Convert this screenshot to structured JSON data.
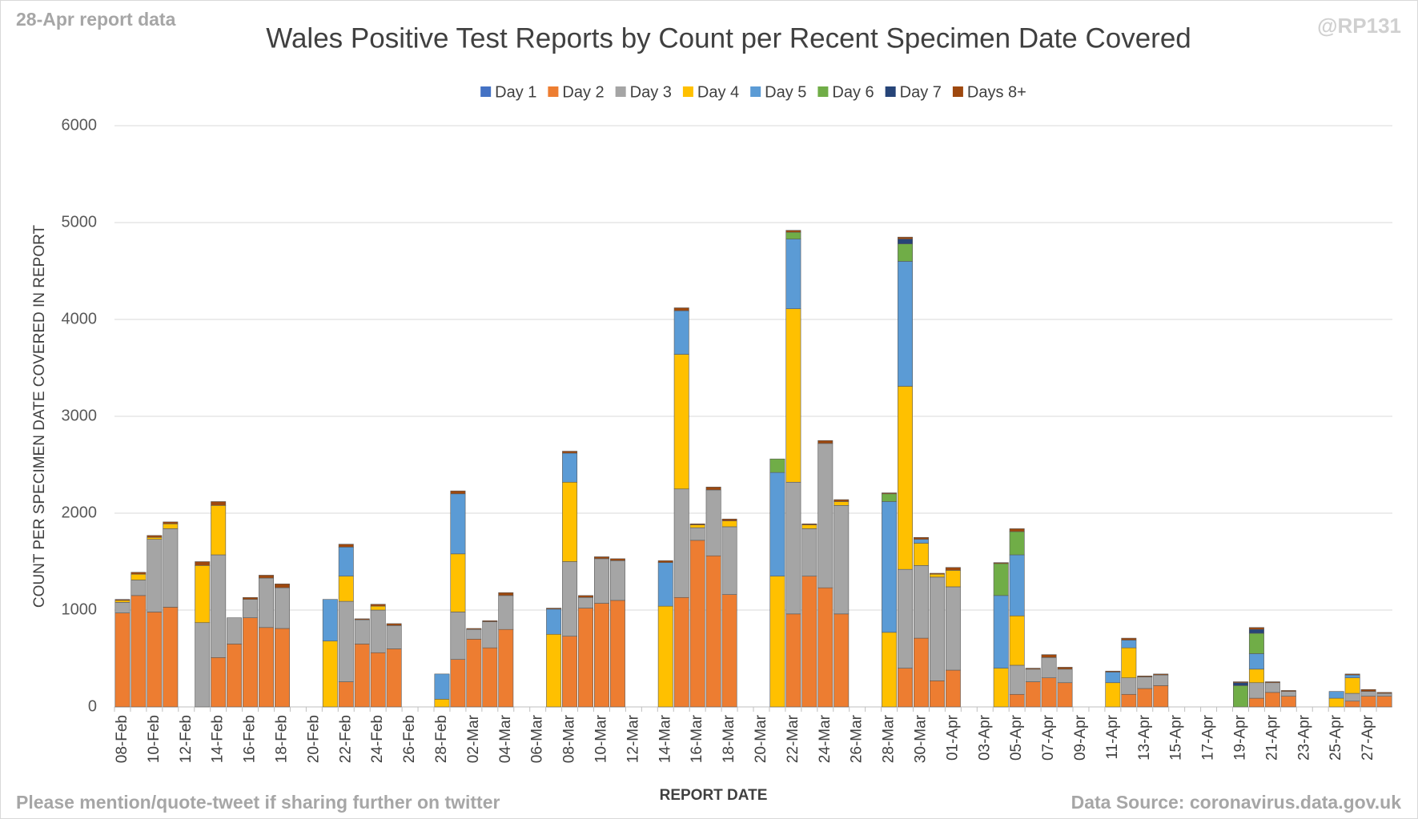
{
  "chart_data": {
    "type": "stacked_bar",
    "title": "Wales Positive Test Reports by Count per Recent Specimen Date Covered",
    "annotations": [
      "28-Apr report data",
      "@RP131",
      "Please mention/quote-tweet if sharing further on twitter",
      "Data Source: coronavirus.data.gov.uk"
    ],
    "y_label": "COUNT PER SPECIMEN DATE COVERED IN REPORT",
    "x_label": "REPORT DATE",
    "categories": [
      "08-Feb",
      null,
      "10-Feb",
      null,
      "12-Feb",
      null,
      "14-Feb",
      null,
      "16-Feb",
      null,
      "18-Feb",
      null,
      "20-Feb",
      null,
      "22-Feb",
      null,
      "24-Feb",
      null,
      "26-Feb",
      null,
      "28-Feb",
      null,
      "02-Mar",
      null,
      "04-Mar",
      null,
      "06-Mar",
      null,
      "08-Mar",
      null,
      "10-Mar",
      null,
      "12-Mar",
      null,
      "14-Mar",
      null,
      "16-Mar",
      null,
      "18-Mar",
      null,
      "20-Mar",
      null,
      "22-Mar",
      null,
      "24-Mar",
      null,
      "26-Mar",
      null,
      "28-Mar",
      null,
      "30-Mar",
      null,
      "01-Apr",
      null,
      "03-Apr",
      null,
      "05-Apr",
      null,
      "07-Apr",
      null,
      "09-Apr",
      null,
      "11-Apr",
      null,
      "13-Apr",
      null,
      "15-Apr",
      null,
      "17-Apr",
      null,
      "19-Apr",
      null,
      "21-Apr",
      null,
      "23-Apr",
      null,
      "25-Apr",
      null,
      "27-Apr",
      null
    ],
    "series": [
      {
        "name": "Day 1",
        "color": "#4472c4",
        "values": [
          0,
          0,
          0,
          0,
          0,
          0,
          0,
          0,
          0,
          0,
          0,
          0,
          0,
          0,
          0,
          0,
          0,
          0,
          0,
          0,
          0,
          0,
          0,
          0,
          0,
          0,
          0,
          0,
          0,
          0,
          0,
          0,
          0,
          0,
          0,
          0,
          0,
          0,
          0,
          0,
          0,
          0,
          0,
          0,
          0,
          0,
          0,
          0,
          0,
          0,
          0,
          0,
          0,
          0,
          0,
          0,
          0,
          0,
          0,
          0,
          0,
          0,
          0,
          0,
          0,
          0,
          0,
          0,
          0,
          0,
          0,
          0,
          0,
          0,
          0,
          0,
          0,
          0,
          0,
          0
        ]
      },
      {
        "name": "Day 2",
        "color": "#ed7d31",
        "values": [
          970,
          1150,
          980,
          1030,
          0,
          0,
          510,
          650,
          920,
          820,
          810,
          0,
          0,
          0,
          260,
          650,
          560,
          600,
          0,
          0,
          0,
          490,
          700,
          610,
          800,
          0,
          0,
          0,
          730,
          1020,
          1070,
          1100,
          0,
          0,
          0,
          1130,
          1720,
          1560,
          1160,
          0,
          0,
          0,
          960,
          1350,
          1230,
          960,
          0,
          0,
          0,
          400,
          710,
          270,
          380,
          0,
          0,
          0,
          130,
          260,
          300,
          250,
          0,
          0,
          0,
          130,
          190,
          220,
          0,
          0,
          0,
          0,
          0,
          90,
          150,
          110,
          0,
          0,
          0,
          60,
          110,
          110
        ]
      },
      {
        "name": "Day 3",
        "color": "#a5a5a5",
        "values": [
          110,
          160,
          750,
          810,
          0,
          870,
          1060,
          270,
          190,
          510,
          420,
          0,
          0,
          0,
          830,
          250,
          440,
          240,
          0,
          0,
          0,
          490,
          100,
          270,
          350,
          0,
          0,
          0,
          770,
          110,
          460,
          410,
          0,
          0,
          0,
          1120,
          130,
          680,
          700,
          0,
          0,
          0,
          1360,
          490,
          1490,
          1120,
          0,
          0,
          0,
          1020,
          750,
          1070,
          860,
          0,
          0,
          0,
          300,
          130,
          210,
          140,
          0,
          0,
          0,
          170,
          120,
          110,
          0,
          0,
          0,
          0,
          0,
          160,
          100,
          50,
          0,
          0,
          0,
          80,
          50,
          30
        ]
      },
      {
        "name": "Day 4",
        "color": "#ffc000",
        "values": [
          20,
          60,
          20,
          50,
          0,
          590,
          510,
          0,
          0,
          0,
          0,
          0,
          0,
          680,
          260,
          0,
          40,
          0,
          0,
          0,
          80,
          600,
          0,
          0,
          0,
          0,
          0,
          750,
          820,
          0,
          0,
          0,
          0,
          0,
          1040,
          1390,
          30,
          0,
          60,
          0,
          0,
          1350,
          1790,
          40,
          0,
          40,
          0,
          0,
          770,
          1890,
          230,
          30,
          170,
          0,
          0,
          400,
          510,
          0,
          0,
          0,
          0,
          0,
          250,
          310,
          0,
          0,
          0,
          0,
          0,
          0,
          0,
          140,
          0,
          0,
          0,
          0,
          90,
          160,
          0,
          0
        ]
      },
      {
        "name": "Day 5",
        "color": "#5b9bd5",
        "values": [
          0,
          0,
          0,
          0,
          0,
          0,
          0,
          0,
          0,
          0,
          0,
          0,
          0,
          430,
          300,
          0,
          0,
          0,
          0,
          0,
          260,
          620,
          0,
          0,
          0,
          0,
          0,
          260,
          300,
          0,
          0,
          0,
          0,
          0,
          450,
          450,
          0,
          0,
          0,
          0,
          0,
          1070,
          720,
          0,
          0,
          0,
          0,
          0,
          1350,
          1290,
          40,
          0,
          0,
          0,
          0,
          750,
          630,
          0,
          0,
          0,
          0,
          0,
          110,
          80,
          0,
          0,
          0,
          0,
          0,
          0,
          0,
          160,
          0,
          0,
          0,
          0,
          70,
          30,
          0,
          0
        ]
      },
      {
        "name": "Day 6",
        "color": "#70ad47",
        "values": [
          0,
          0,
          0,
          0,
          0,
          0,
          0,
          0,
          0,
          0,
          0,
          0,
          0,
          0,
          0,
          0,
          0,
          0,
          0,
          0,
          0,
          0,
          0,
          0,
          0,
          0,
          0,
          0,
          0,
          0,
          0,
          0,
          0,
          0,
          0,
          0,
          0,
          0,
          0,
          0,
          0,
          140,
          70,
          0,
          0,
          0,
          0,
          0,
          80,
          180,
          0,
          0,
          0,
          0,
          0,
          330,
          240,
          0,
          0,
          0,
          0,
          0,
          0,
          0,
          0,
          0,
          0,
          0,
          0,
          0,
          220,
          210,
          0,
          0,
          0,
          0,
          0,
          0,
          0,
          0
        ]
      },
      {
        "name": "Day 7",
        "color": "#264478",
        "values": [
          0,
          0,
          0,
          0,
          0,
          0,
          0,
          0,
          0,
          0,
          0,
          0,
          0,
          0,
          0,
          0,
          0,
          0,
          0,
          0,
          0,
          0,
          0,
          0,
          0,
          0,
          0,
          0,
          0,
          0,
          0,
          0,
          0,
          0,
          0,
          0,
          0,
          0,
          0,
          0,
          0,
          0,
          0,
          0,
          0,
          0,
          0,
          0,
          0,
          50,
          0,
          0,
          0,
          0,
          0,
          0,
          0,
          0,
          0,
          0,
          0,
          0,
          0,
          0,
          0,
          0,
          0,
          0,
          0,
          0,
          30,
          40,
          0,
          0,
          0,
          0,
          0,
          0,
          0,
          0
        ]
      },
      {
        "name": "Days 8+",
        "color": "#9e480e",
        "values": [
          10,
          20,
          20,
          20,
          0,
          40,
          40,
          0,
          20,
          30,
          40,
          0,
          0,
          0,
          30,
          10,
          20,
          20,
          0,
          0,
          0,
          30,
          10,
          10,
          30,
          0,
          0,
          10,
          20,
          20,
          20,
          20,
          0,
          0,
          20,
          30,
          10,
          30,
          20,
          0,
          0,
          0,
          20,
          10,
          30,
          20,
          0,
          0,
          10,
          20,
          20,
          10,
          30,
          0,
          0,
          10,
          30,
          10,
          30,
          20,
          0,
          0,
          10,
          20,
          10,
          10,
          0,
          0,
          0,
          0,
          10,
          20,
          10,
          10,
          0,
          0,
          0,
          10,
          20,
          10
        ]
      }
    ],
    "ylim": [
      0,
      6000
    ],
    "yticks": [
      0,
      1000,
      2000,
      3000,
      4000,
      5000,
      6000
    ],
    "grid": true,
    "legend": "top"
  }
}
